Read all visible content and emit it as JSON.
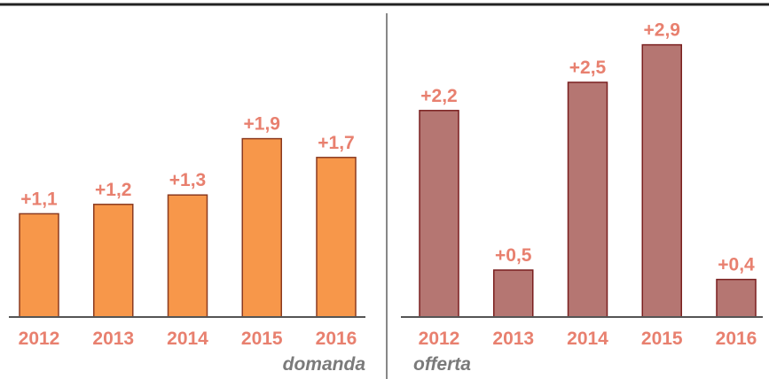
{
  "chart_data": [
    {
      "type": "bar",
      "title": "domanda",
      "categories": [
        "2012",
        "2013",
        "2014",
        "2015",
        "2016"
      ],
      "values": [
        1.1,
        1.2,
        1.3,
        1.9,
        1.7
      ],
      "value_labels": [
        "+1,1",
        "+1,2",
        "+1,3",
        "+1,9",
        "+1,7"
      ],
      "color": "#f7974a"
    },
    {
      "type": "bar",
      "title": "offerta",
      "categories": [
        "2012",
        "2013",
        "2014",
        "2015",
        "2016"
      ],
      "values": [
        2.2,
        0.5,
        2.5,
        2.9,
        0.4
      ],
      "value_labels": [
        "+2,2",
        "+0,5",
        "+2,5",
        "+2,9",
        "+0,4"
      ],
      "color": "#b57672"
    }
  ]
}
